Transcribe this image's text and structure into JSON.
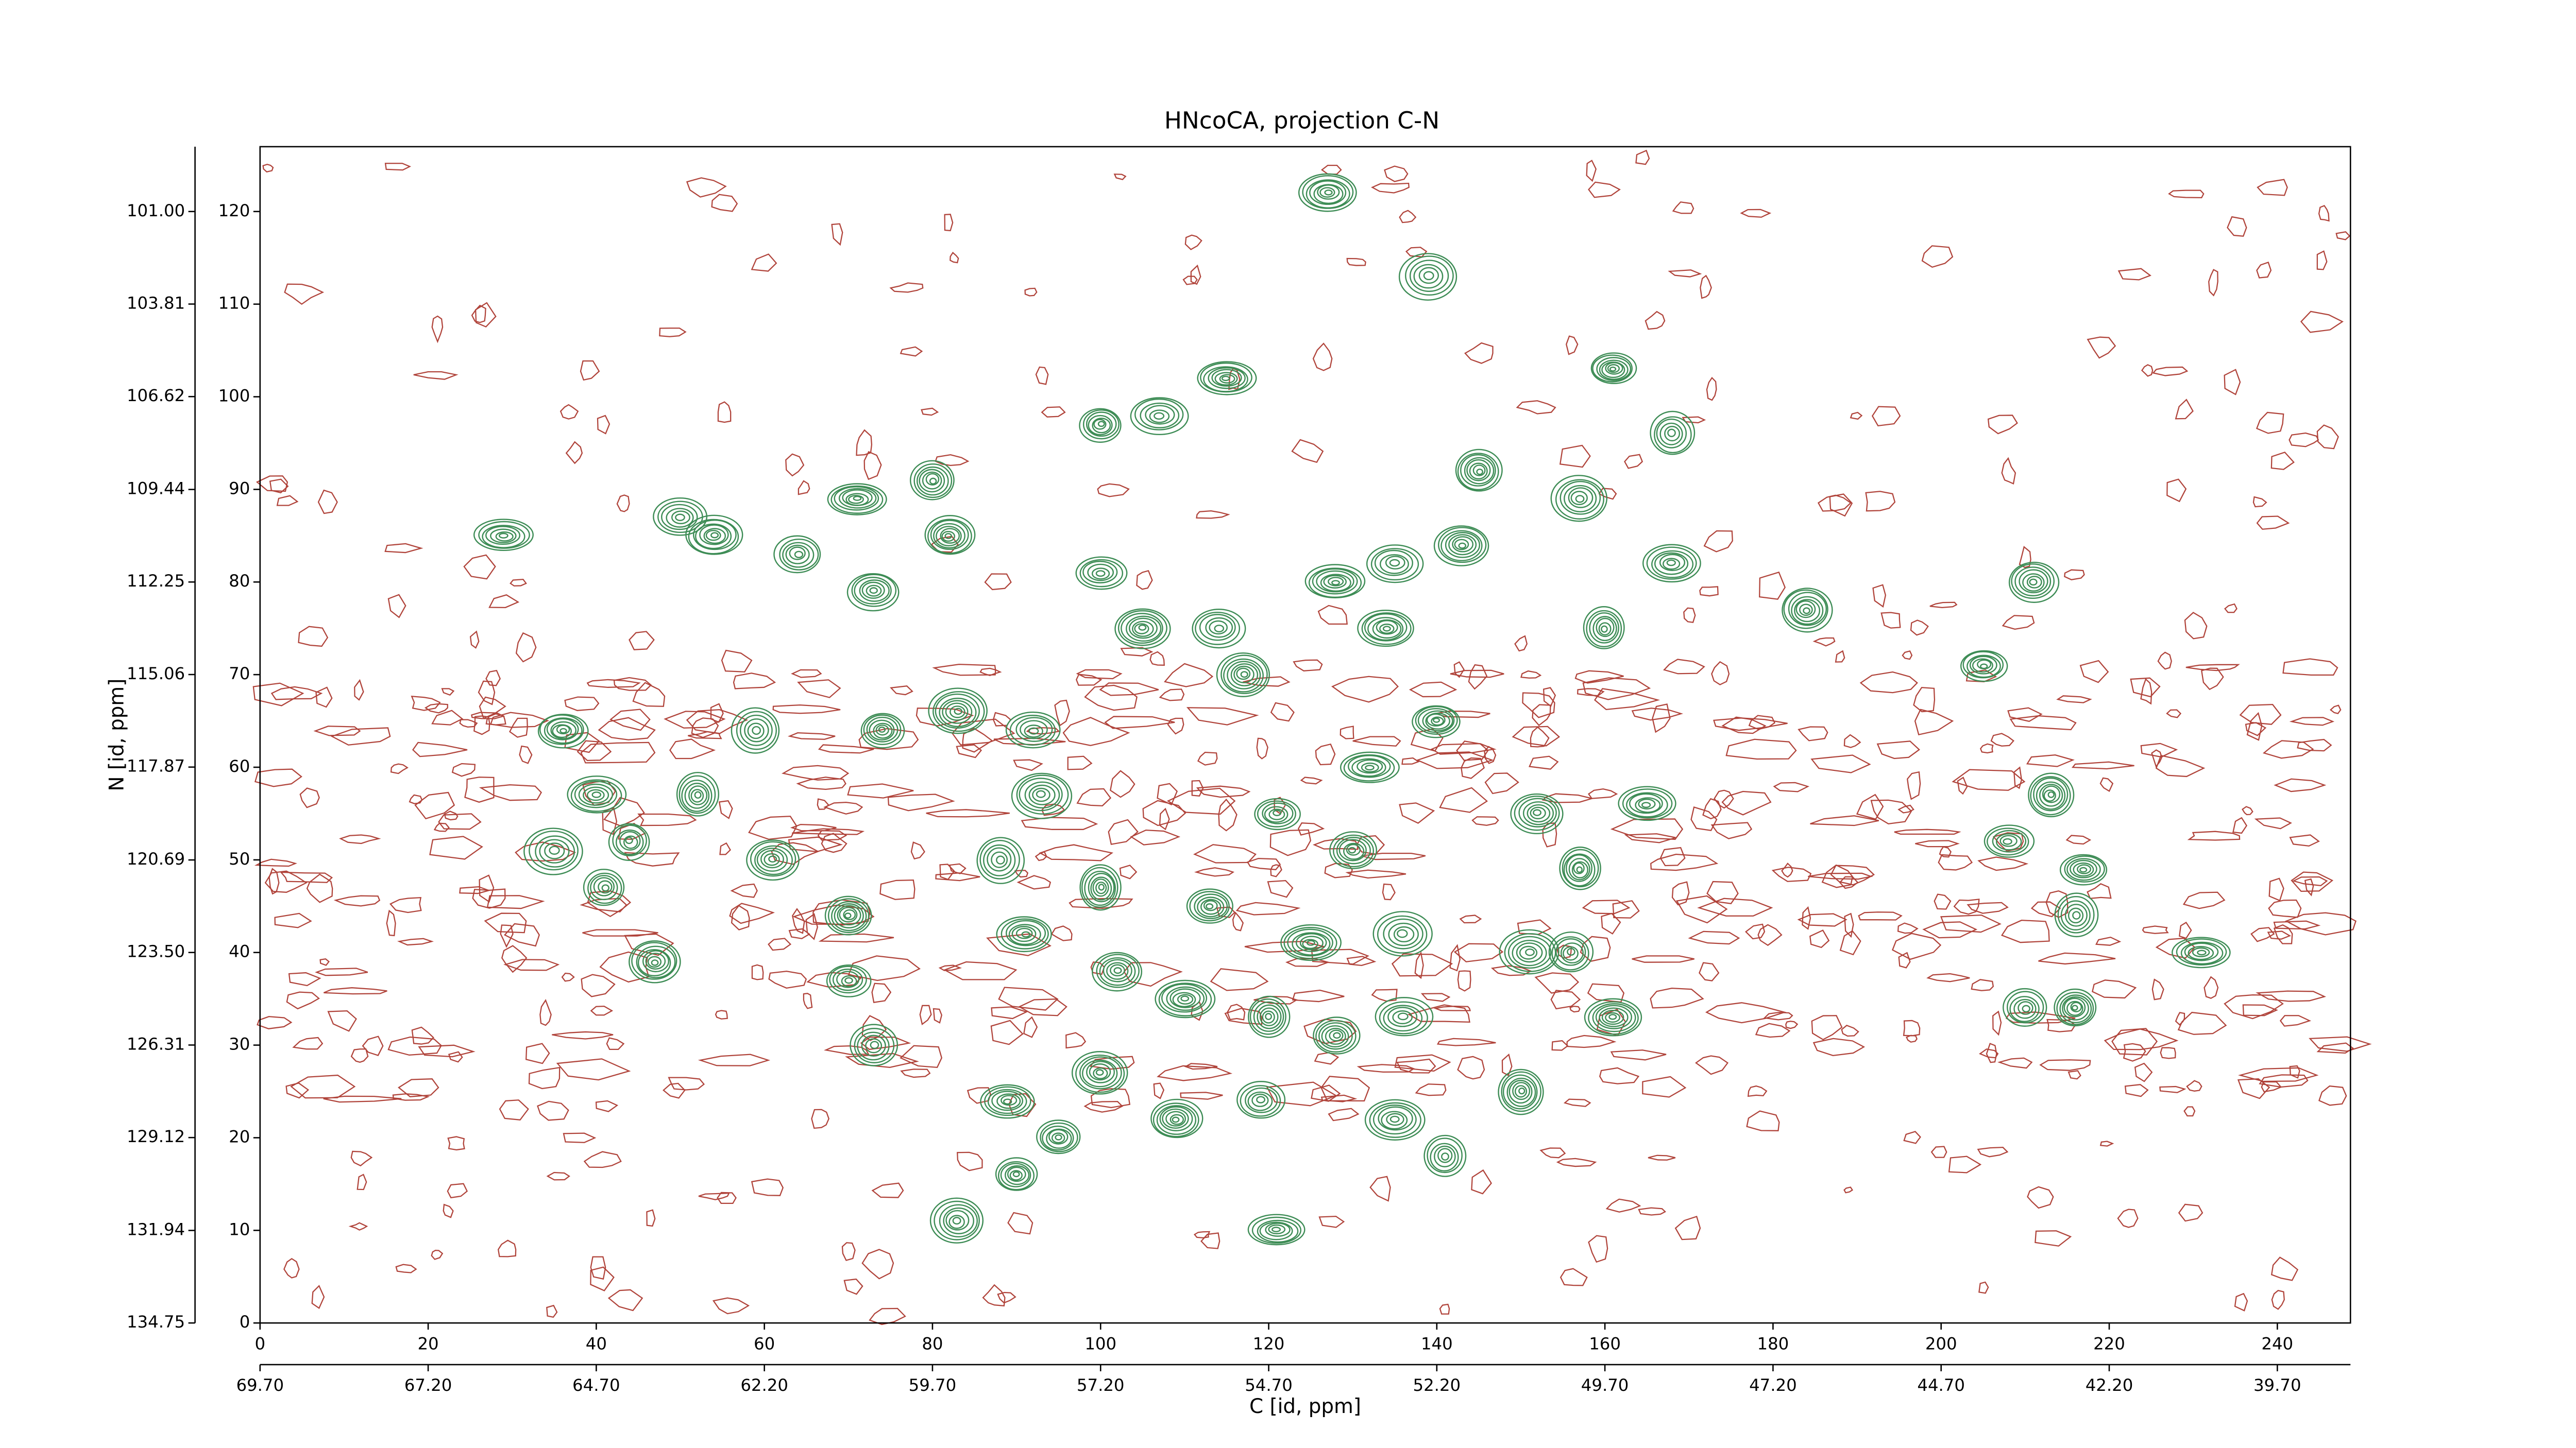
{
  "chart_data": {
    "type": "contour",
    "title": "HNcoCA, projection C-N",
    "x_label": "C [id, ppm]",
    "y_label": "N [id, ppm]",
    "xlim": [
      0,
      248.7
    ],
    "xticks": [
      0,
      20,
      40,
      60,
      80,
      100,
      120,
      140,
      160,
      180,
      200,
      220,
      240
    ],
    "x2lim": [
      69.7,
      38.6125
    ],
    "x2ticks": [
      {
        "value": 69.7,
        "label": "69.70"
      },
      {
        "value": 67.2,
        "label": "67.20"
      },
      {
        "value": 64.7,
        "label": "64.70"
      },
      {
        "value": 62.2,
        "label": "62.20"
      },
      {
        "value": 59.7,
        "label": "59.70"
      },
      {
        "value": 57.2,
        "label": "57.20"
      },
      {
        "value": 54.7,
        "label": "54.70"
      },
      {
        "value": 52.2,
        "label": "52.20"
      },
      {
        "value": 49.7,
        "label": "49.70"
      },
      {
        "value": 47.2,
        "label": "47.20"
      },
      {
        "value": 44.7,
        "label": "44.70"
      },
      {
        "value": 42.2,
        "label": "42.20"
      },
      {
        "value": 39.7,
        "label": "39.70"
      }
    ],
    "ylim": [
      0,
      127
    ],
    "yticks": [
      0,
      10,
      20,
      30,
      40,
      50,
      60,
      70,
      80,
      90,
      100,
      110,
      120
    ],
    "y2lim": [
      134.75,
      99.03125
    ],
    "y2ticks": [
      {
        "value": 134.75,
        "label": "134.75"
      },
      {
        "value": 131.94,
        "label": "131.94"
      },
      {
        "value": 129.12,
        "label": "129.12"
      },
      {
        "value": 126.31,
        "label": "126.31"
      },
      {
        "value": 123.5,
        "label": "123.50"
      },
      {
        "value": 120.69,
        "label": "120.69"
      },
      {
        "value": 117.87,
        "label": "117.87"
      },
      {
        "value": 115.06,
        "label": "115.06"
      },
      {
        "value": 112.25,
        "label": "112.25"
      },
      {
        "value": 109.44,
        "label": "109.44"
      },
      {
        "value": 106.62,
        "label": "106.62"
      },
      {
        "value": 103.81,
        "label": "103.81"
      },
      {
        "value": 101,
        "label": "101.00"
      }
    ],
    "color": "#3d8c55",
    "noise_color": "#b0433a",
    "peaks": {
      "x": [
        127,
        139,
        115,
        161,
        107,
        100,
        168,
        145,
        157,
        71,
        80,
        82,
        29,
        54,
        64,
        50,
        100,
        105,
        135,
        143,
        128,
        134,
        168,
        184,
        160,
        211,
        73,
        205,
        36,
        59,
        74,
        83,
        92,
        114,
        117,
        40,
        52,
        44,
        35,
        41,
        61,
        93,
        88,
        100,
        113,
        121,
        130,
        132,
        140,
        152,
        165,
        157,
        208,
        213,
        217,
        216,
        70,
        70,
        73,
        47,
        91,
        102,
        110,
        125,
        136,
        151,
        156,
        120,
        128,
        136,
        161,
        210,
        216,
        231,
        100,
        109,
        119,
        89,
        95,
        90,
        135,
        141,
        150,
        83,
        121
      ],
      "y": [
        122,
        113,
        102,
        103,
        98,
        97,
        96,
        92,
        89,
        89,
        91,
        85,
        85,
        85,
        83,
        87,
        81,
        75,
        82,
        84,
        80,
        75,
        82,
        77,
        75,
        80,
        79,
        71,
        64,
        64,
        64,
        66,
        64,
        75,
        70,
        57,
        57,
        52,
        51,
        47,
        50,
        57,
        50,
        47,
        45,
        55,
        51,
        60,
        65,
        55,
        56,
        49,
        52,
        57,
        49,
        44,
        44,
        37,
        30,
        39,
        42,
        38,
        35,
        41,
        42,
        40,
        40,
        33,
        31,
        33,
        33,
        34,
        34,
        40,
        27,
        22,
        24,
        24,
        20,
        16,
        22,
        18,
        25,
        11,
        10
      ]
    }
  }
}
